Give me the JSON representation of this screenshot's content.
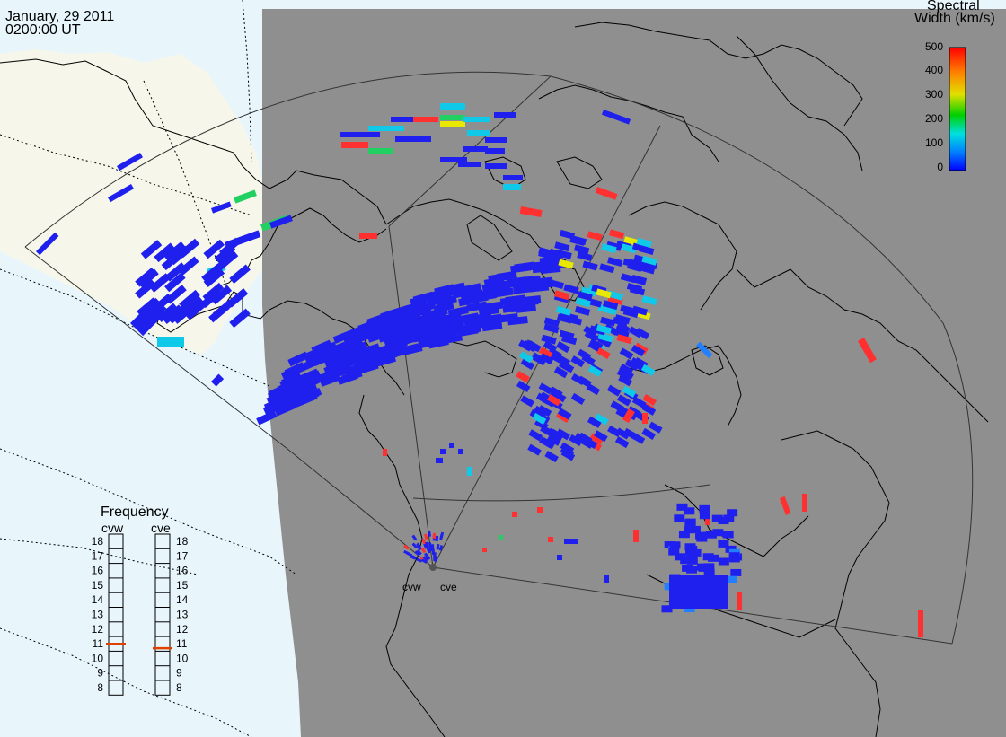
{
  "header": {
    "date": "January, 29 2011",
    "time": "0200:00 UT"
  },
  "colorbar": {
    "title_line1": "Spectral",
    "title_line2": "Width (km/s)",
    "ticks": [
      "500",
      "400",
      "300",
      "200",
      "100",
      "0"
    ],
    "range": [
      0,
      500
    ],
    "colors": [
      "#0000ff",
      "#0080ff",
      "#00e0e0",
      "#00d000",
      "#e0e000",
      "#ff8000",
      "#ff0000"
    ]
  },
  "frequency_panel": {
    "title": "Frequency",
    "radars": [
      {
        "name": "cvw",
        "value": 11
      },
      {
        "name": "cve",
        "value": 10.7
      }
    ],
    "scale": [
      "18",
      "17",
      "16",
      "15",
      "14",
      "13",
      "12",
      "11",
      "10",
      "9",
      "8"
    ],
    "marker_color": "#e04000"
  },
  "radar_sites": [
    {
      "name": "cvw"
    },
    {
      "name": "cve"
    }
  ],
  "map_colors": {
    "ocean_day": "#e8f6fc",
    "land_day": "#f6f6ea",
    "night": "#8f8f8f",
    "coast": "#000000"
  }
}
